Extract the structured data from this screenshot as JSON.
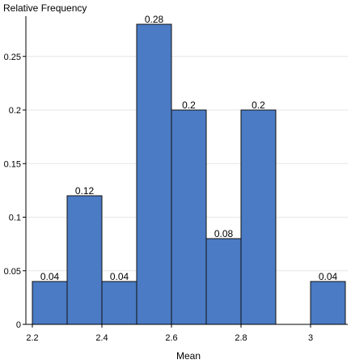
{
  "chart_data": {
    "type": "bar",
    "xlabel": "Mean",
    "ylabel": "Relative Frequency",
    "bins": [
      {
        "x0": 2.2,
        "x1": 2.3,
        "value": 0.04,
        "label": "0.04"
      },
      {
        "x0": 2.3,
        "x1": 2.4,
        "value": 0.12,
        "label": "0.12"
      },
      {
        "x0": 2.4,
        "x1": 2.5,
        "value": 0.04,
        "label": "0.04"
      },
      {
        "x0": 2.5,
        "x1": 2.6,
        "value": 0.28,
        "label": "0.28"
      },
      {
        "x0": 2.6,
        "x1": 2.7,
        "value": 0.2,
        "label": "0.2"
      },
      {
        "x0": 2.7,
        "x1": 2.8,
        "value": 0.08,
        "label": "0.08"
      },
      {
        "x0": 2.8,
        "x1": 2.9,
        "value": 0.2,
        "label": "0.2"
      },
      {
        "x0": 3.0,
        "x1": 3.1,
        "value": 0.04,
        "label": "0.04"
      }
    ],
    "xlim": [
      2.2,
      3.1
    ],
    "ylim": [
      0,
      0.28
    ],
    "xticks": [
      2.2,
      2.4,
      2.6,
      2.8,
      3
    ],
    "xtick_labels": [
      "2.2",
      "2.4",
      "2.6",
      "2.8",
      "3"
    ],
    "yticks": [
      0,
      0.05,
      0.1,
      0.15,
      0.2,
      0.25
    ],
    "ytick_labels": [
      "0",
      "0.05",
      "0.1",
      "0.15",
      "0.2",
      "0.25"
    ],
    "grid": "horizontal",
    "colors": {
      "bar": "#4a7bc4",
      "bar_edge": "#111111",
      "grid": "#e6e6e6"
    }
  }
}
